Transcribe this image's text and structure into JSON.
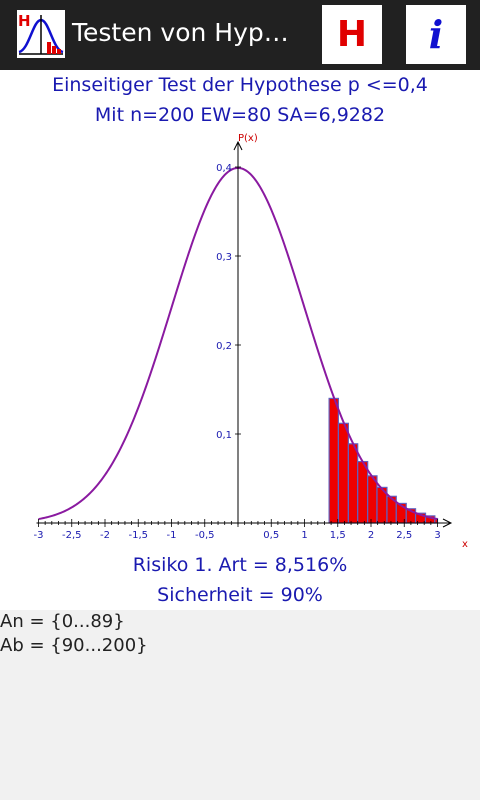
{
  "actionbar": {
    "title": "Testen von Hyp…",
    "app_icon_letter": "H",
    "h_button_label": "H",
    "info_button_label": "i"
  },
  "header": {
    "line1": "Einseitiger Test der Hypothese p <=0,4",
    "line2": "Mit n=200 EW=80 SA=6,9282"
  },
  "chart_data": {
    "type": "area",
    "curve": "standard-normal-density",
    "xlabel": "x",
    "ylabel": "P(x)",
    "xlim": [
      -3,
      3.3
    ],
    "ylim": [
      0,
      0.43
    ],
    "x_ticks": [
      "-3",
      "-2,5",
      "-2",
      "-1,5",
      "-1",
      "-0,5",
      "0,5",
      "1",
      "1,5",
      "2",
      "2,5",
      "3"
    ],
    "x_tick_values": [
      -3,
      -2.5,
      -2,
      -1.5,
      -1,
      -0.5,
      0.5,
      1,
      1.5,
      2,
      2.5,
      3
    ],
    "y_ticks": [
      "0,1",
      "0,2",
      "0,3",
      "0,4"
    ],
    "y_tick_values": [
      0.1,
      0.2,
      0.3,
      0.4
    ],
    "rejection_bars": [
      {
        "x0": 1.37,
        "x1": 1.51,
        "h": 0.14
      },
      {
        "x0": 1.51,
        "x1": 1.66,
        "h": 0.112
      },
      {
        "x0": 1.66,
        "x1": 1.8,
        "h": 0.089
      },
      {
        "x0": 1.8,
        "x1": 1.95,
        "h": 0.069
      },
      {
        "x0": 1.95,
        "x1": 2.09,
        "h": 0.053
      },
      {
        "x0": 2.09,
        "x1": 2.24,
        "h": 0.04
      },
      {
        "x0": 2.24,
        "x1": 2.38,
        "h": 0.03
      },
      {
        "x0": 2.38,
        "x1": 2.53,
        "h": 0.022
      },
      {
        "x0": 2.53,
        "x1": 2.67,
        "h": 0.016
      },
      {
        "x0": 2.67,
        "x1": 2.82,
        "h": 0.011
      },
      {
        "x0": 2.82,
        "x1": 2.96,
        "h": 0.008
      },
      {
        "x0": 2.96,
        "x1": 3.0,
        "h": 0.005
      }
    ],
    "colors": {
      "curve": "#8a1aa0",
      "bar_fill": "#ee0000",
      "bar_stroke": "#6060c0",
      "tick_label": "#1a1ab0",
      "axis_label": "#cc0000"
    }
  },
  "result": {
    "risk": "Risiko 1. Art = 8,516%",
    "confidence": "Sicherheit = 90%"
  },
  "output": {
    "accept_region": "An = {0...89}",
    "reject_region": "Ab = {90...200}"
  }
}
